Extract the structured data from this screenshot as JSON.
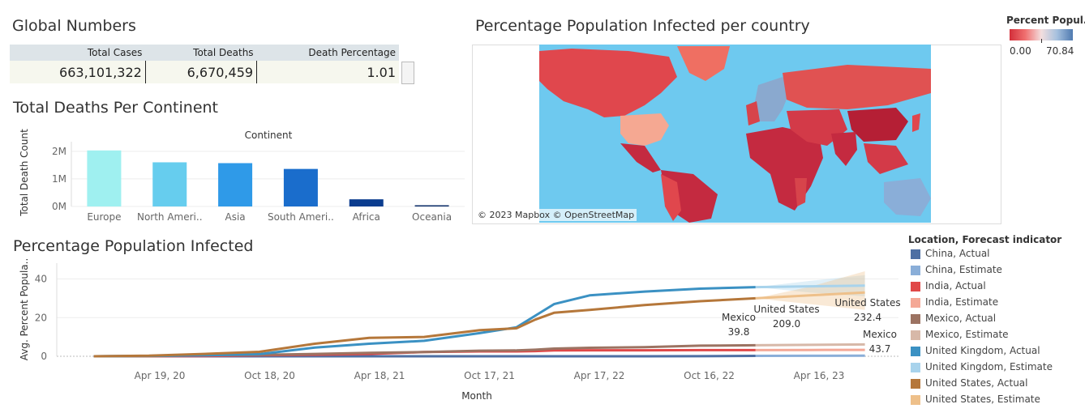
{
  "global": {
    "title": "Global Numbers",
    "headers": [
      "Total Cases",
      "Total Deaths",
      "Death Percentage"
    ],
    "values": [
      "663,101,322",
      "6,670,459",
      "1.01"
    ]
  },
  "map": {
    "title": "Percentage Population Infected per country",
    "credit": "© 2023 Mapbox © OpenStreetMap",
    "legend_title": "Percent Popul..",
    "legend_min": "0.00",
    "legend_max": "70.84",
    "ocean_color": "#6ec9ef",
    "low_color": "#d32f3a",
    "high_color": "#4f7ab0"
  },
  "chart_data": [
    {
      "type": "bar",
      "title": "Total Deaths Per Continent",
      "header": "Continent",
      "ylabel": "Total Death Count",
      "categories": [
        "Europe",
        "North Ameri..",
        "Asia",
        "South Ameri..",
        "Africa",
        "Oceania"
      ],
      "values": [
        2030000,
        1600000,
        1570000,
        1360000,
        260000,
        25000
      ],
      "colors": [
        "#9ff0f0",
        "#66cdee",
        "#2f9ae8",
        "#1a6dcc",
        "#0b3d8f",
        "#082a66"
      ],
      "yticks": [
        "0M",
        "1M",
        "2M"
      ],
      "ylim": [
        0,
        2200000
      ]
    },
    {
      "type": "line",
      "title": "Percentage Population Infected",
      "xlabel": "Month",
      "ylabel": "Avg. Percent Popula..",
      "x_ticks": [
        "Apr 19, 20",
        "Oct 18, 20",
        "Apr 18, 21",
        "Oct 17, 21",
        "Apr 17, 22",
        "Oct 16, 22",
        "Apr 16, 23"
      ],
      "y_ticks": [
        "0",
        "20",
        "40"
      ],
      "ylim": [
        0,
        44
      ],
      "x_dates": [
        "2020-01-01",
        "2020-04-01",
        "2020-07-01",
        "2020-10-01",
        "2021-01-01",
        "2021-04-01",
        "2021-07-01",
        "2021-10-01",
        "2021-12-01",
        "2022-01-01",
        "2022-02-01",
        "2022-04-01",
        "2022-07-01",
        "2022-10-01",
        "2023-01-01"
      ],
      "x_dates_est": [
        "2023-01-01",
        "2023-04-01",
        "2023-07-01"
      ],
      "series": [
        {
          "name": "China, Actual",
          "color": "#4e6fa3",
          "values": [
            0,
            0.01,
            0.01,
            0.01,
            0.01,
            0.01,
            0.01,
            0.01,
            0.01,
            0.01,
            0.01,
            0.02,
            0.02,
            0.03,
            0.2
          ]
        },
        {
          "name": "China, Estimate",
          "color": "#8aaed8",
          "values": [
            0.2,
            0.25,
            0.3
          ]
        },
        {
          "name": "India, Actual",
          "color": "#e04848",
          "values": [
            0,
            0,
            0.1,
            0.5,
            0.8,
            1.2,
            2.2,
            2.5,
            2.5,
            2.7,
            3.0,
            3.1,
            3.1,
            3.2,
            3.2
          ]
        },
        {
          "name": "India, Estimate",
          "color": "#f4a896",
          "values": [
            3.2,
            3.25,
            3.3
          ]
        },
        {
          "name": "Mexico, Actual",
          "color": "#9c7362",
          "values": [
            0,
            0.05,
            0.5,
            0.7,
            1.2,
            1.8,
            2.2,
            2.9,
            3.0,
            3.4,
            4.0,
            4.4,
            4.7,
            5.5,
            5.7
          ]
        },
        {
          "name": "Mexico, Estimate",
          "color": "#d7b8a8",
          "values": [
            5.7,
            5.9,
            6.1
          ]
        },
        {
          "name": "United Kingdom, Actual",
          "color": "#3b91c3",
          "values": [
            0,
            0.2,
            0.5,
            1.1,
            4.5,
            6.5,
            8.0,
            12.0,
            15.0,
            21.0,
            27.0,
            31.5,
            33.5,
            35.0,
            35.8
          ]
        },
        {
          "name": "United Kingdom, Estimate",
          "color": "#a8d3ec",
          "values": [
            35.8,
            36.2,
            36.6
          ]
        },
        {
          "name": "United States, Actual",
          "color": "#b5773a",
          "values": [
            0,
            0.3,
            1.2,
            2.3,
            6.5,
            9.5,
            10.0,
            13.5,
            14.5,
            19.0,
            22.5,
            24.0,
            26.5,
            28.5,
            30.0
          ]
        },
        {
          "name": "United States, Estimate",
          "color": "#eec08a",
          "values": [
            30.0,
            31.5,
            33.0
          ]
        }
      ],
      "annotations": [
        {
          "text": [
            "Mexico",
            "39.8"
          ]
        },
        {
          "text": [
            "United States",
            "209.0"
          ]
        },
        {
          "text": [
            "United States",
            "232.4"
          ]
        },
        {
          "text": [
            "Mexico",
            "43.7"
          ]
        }
      ],
      "legend_title": "Location, Forecast indicator"
    }
  ]
}
